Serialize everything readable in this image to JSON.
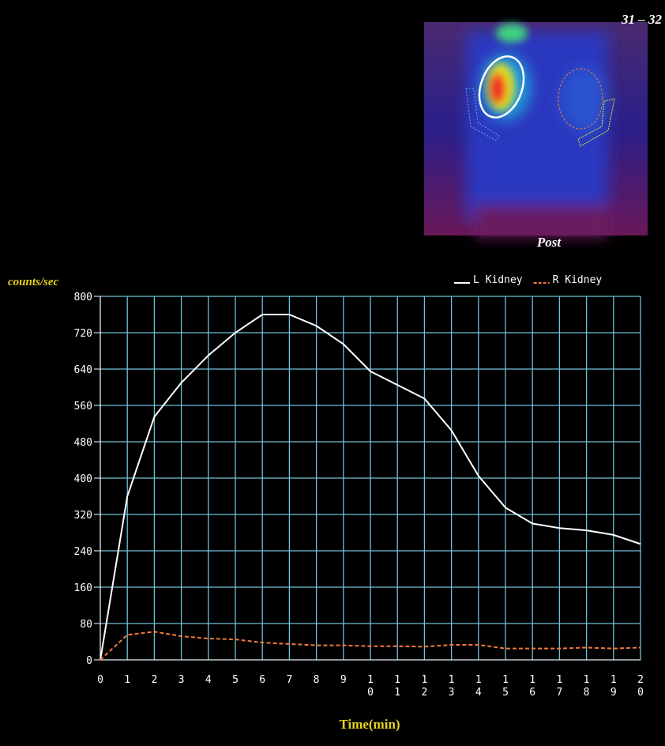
{
  "image": {
    "frame_label": "31 – 32",
    "view": "Post"
  },
  "chart_data": {
    "type": "line",
    "y_label": "counts/sec",
    "x_label": "Time(min)",
    "x": [
      0,
      1,
      2,
      3,
      4,
      5,
      6,
      7,
      8,
      9,
      10,
      11,
      12,
      13,
      14,
      15,
      16,
      17,
      18,
      19,
      20
    ],
    "series": [
      {
        "name": "L Kidney",
        "color": "#ffffff",
        "style": "solid",
        "values": [
          0,
          360,
          535,
          610,
          670,
          720,
          760,
          760,
          735,
          695,
          635,
          605,
          575,
          505,
          405,
          335,
          300,
          290,
          285,
          275,
          255
        ]
      },
      {
        "name": "R Kidney",
        "color": "#f07a3c",
        "style": "dashed",
        "values": [
          0,
          55,
          62,
          52,
          47,
          45,
          38,
          35,
          32,
          32,
          30,
          30,
          29,
          33,
          33,
          25,
          25,
          25,
          27,
          25,
          27
        ]
      }
    ],
    "xlim": [
      0,
      20
    ],
    "xticks": [
      0,
      1,
      2,
      3,
      4,
      5,
      6,
      7,
      8,
      9,
      10,
      11,
      12,
      13,
      14,
      15,
      16,
      17,
      18,
      19,
      20
    ],
    "ylim": [
      0,
      800
    ],
    "yticks": [
      0,
      80,
      160,
      240,
      320,
      400,
      480,
      560,
      640,
      720,
      800
    ],
    "grid": true,
    "grid_color": "#6fc0d8"
  }
}
